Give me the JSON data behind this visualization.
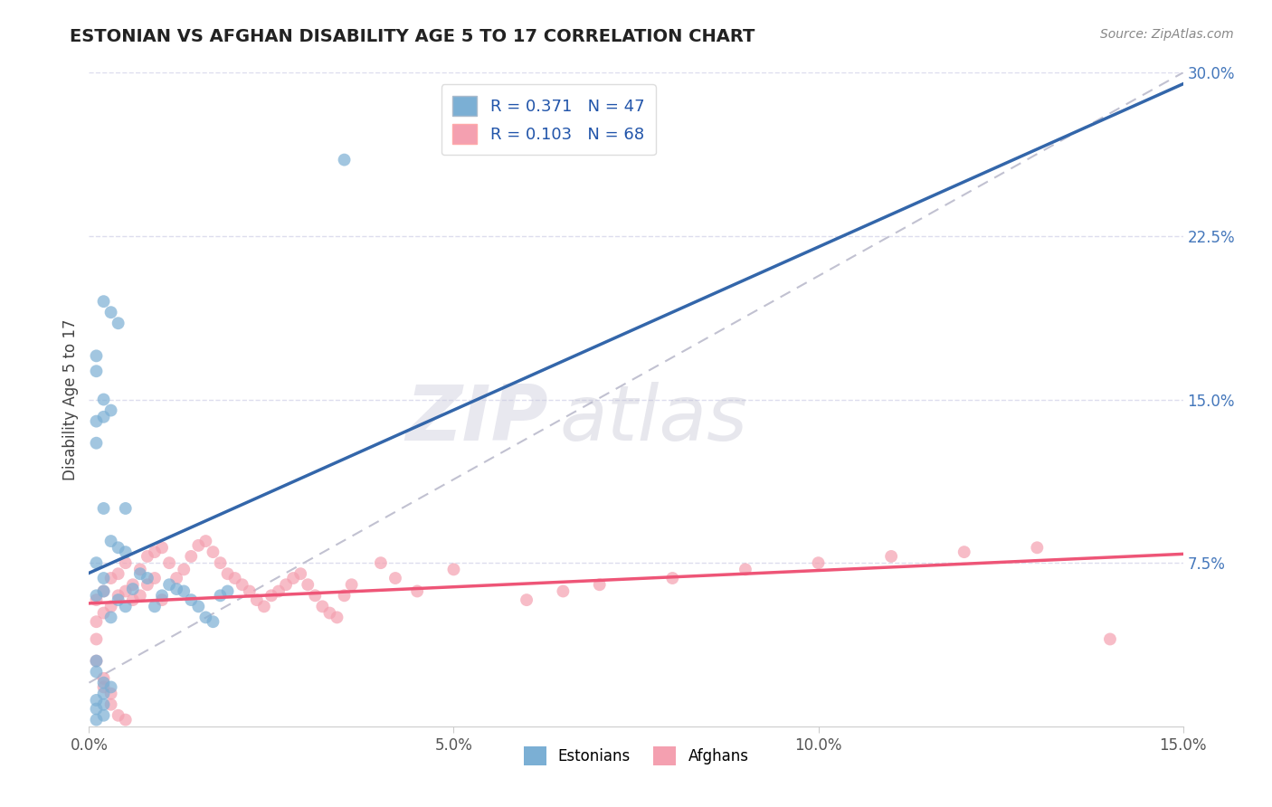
{
  "title": "ESTONIAN VS AFGHAN DISABILITY AGE 5 TO 17 CORRELATION CHART",
  "source": "Source: ZipAtlas.com",
  "ylabel": "Disability Age 5 to 17",
  "xlim": [
    0.0,
    0.15
  ],
  "ylim": [
    0.0,
    0.3
  ],
  "xticks": [
    0.0,
    0.05,
    0.1,
    0.15
  ],
  "xtick_labels": [
    "0.0%",
    "5.0%",
    "10.0%",
    "15.0%"
  ],
  "ytick_labels_right": [
    "7.5%",
    "15.0%",
    "22.5%",
    "30.0%"
  ],
  "yticks_right": [
    0.075,
    0.15,
    0.225,
    0.3
  ],
  "estonian_R": 0.371,
  "estonian_N": 47,
  "afghan_R": 0.103,
  "afghan_N": 68,
  "estonian_color": "#7BAFD4",
  "afghan_color": "#F4A0B0",
  "estonian_line_color": "#3366AA",
  "afghan_line_color": "#EE5577",
  "ref_line_color": "#BBBBCC",
  "background_color": "#FFFFFF",
  "grid_color": "#DDDDEE",
  "estonian_x": [
    0.001,
    0.002,
    0.002,
    0.003,
    0.004,
    0.005,
    0.006,
    0.007,
    0.008,
    0.009,
    0.01,
    0.011,
    0.012,
    0.013,
    0.014,
    0.015,
    0.016,
    0.017,
    0.018,
    0.019,
    0.002,
    0.003,
    0.004,
    0.001,
    0.001,
    0.002,
    0.003,
    0.002,
    0.001,
    0.001,
    0.002,
    0.003,
    0.004,
    0.005,
    0.001,
    0.005,
    0.035,
    0.001,
    0.001,
    0.002,
    0.003,
    0.002,
    0.001,
    0.002,
    0.001,
    0.002,
    0.001
  ],
  "estonian_y": [
    0.06,
    0.068,
    0.062,
    0.05,
    0.058,
    0.055,
    0.063,
    0.07,
    0.068,
    0.055,
    0.06,
    0.065,
    0.063,
    0.062,
    0.058,
    0.055,
    0.05,
    0.048,
    0.06,
    0.062,
    0.195,
    0.19,
    0.185,
    0.17,
    0.163,
    0.15,
    0.145,
    0.142,
    0.14,
    0.13,
    0.1,
    0.085,
    0.082,
    0.08,
    0.075,
    0.1,
    0.26,
    0.03,
    0.025,
    0.02,
    0.018,
    0.015,
    0.012,
    0.01,
    0.008,
    0.005,
    0.003
  ],
  "afghan_x": [
    0.001,
    0.001,
    0.002,
    0.002,
    0.003,
    0.003,
    0.004,
    0.004,
    0.005,
    0.005,
    0.006,
    0.006,
    0.007,
    0.007,
    0.008,
    0.008,
    0.009,
    0.009,
    0.01,
    0.01,
    0.011,
    0.012,
    0.013,
    0.014,
    0.015,
    0.016,
    0.017,
    0.018,
    0.019,
    0.02,
    0.021,
    0.022,
    0.023,
    0.024,
    0.025,
    0.026,
    0.027,
    0.028,
    0.029,
    0.03,
    0.031,
    0.032,
    0.033,
    0.034,
    0.035,
    0.036,
    0.04,
    0.042,
    0.045,
    0.05,
    0.001,
    0.001,
    0.002,
    0.002,
    0.003,
    0.003,
    0.004,
    0.005,
    0.06,
    0.065,
    0.07,
    0.08,
    0.09,
    0.1,
    0.11,
    0.12,
    0.13,
    0.14
  ],
  "afghan_y": [
    0.058,
    0.048,
    0.062,
    0.052,
    0.068,
    0.055,
    0.07,
    0.06,
    0.075,
    0.062,
    0.065,
    0.058,
    0.072,
    0.06,
    0.078,
    0.065,
    0.08,
    0.068,
    0.082,
    0.058,
    0.075,
    0.068,
    0.072,
    0.078,
    0.083,
    0.085,
    0.08,
    0.075,
    0.07,
    0.068,
    0.065,
    0.062,
    0.058,
    0.055,
    0.06,
    0.062,
    0.065,
    0.068,
    0.07,
    0.065,
    0.06,
    0.055,
    0.052,
    0.05,
    0.06,
    0.065,
    0.075,
    0.068,
    0.062,
    0.072,
    0.04,
    0.03,
    0.022,
    0.018,
    0.015,
    0.01,
    0.005,
    0.003,
    0.058,
    0.062,
    0.065,
    0.068,
    0.072,
    0.075,
    0.078,
    0.08,
    0.082,
    0.04
  ]
}
